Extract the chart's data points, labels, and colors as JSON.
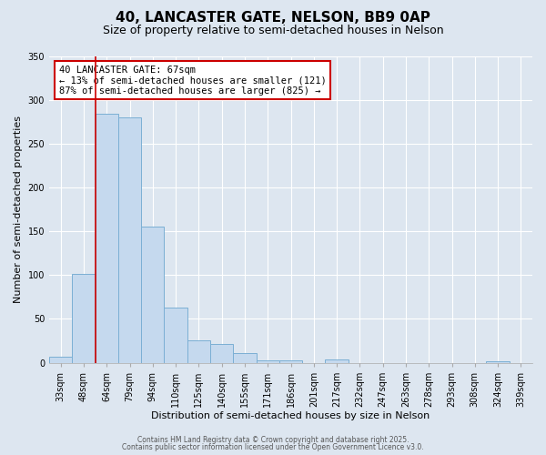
{
  "title": "40, LANCASTER GATE, NELSON, BB9 0AP",
  "subtitle": "Size of property relative to semi-detached houses in Nelson",
  "xlabel": "Distribution of semi-detached houses by size in Nelson",
  "ylabel": "Number of semi-detached properties",
  "bin_labels": [
    "33sqm",
    "48sqm",
    "64sqm",
    "79sqm",
    "94sqm",
    "110sqm",
    "125sqm",
    "140sqm",
    "155sqm",
    "171sqm",
    "186sqm",
    "201sqm",
    "217sqm",
    "232sqm",
    "247sqm",
    "263sqm",
    "278sqm",
    "293sqm",
    "308sqm",
    "324sqm",
    "339sqm"
  ],
  "bar_heights": [
    7,
    101,
    284,
    280,
    155,
    63,
    26,
    21,
    11,
    3,
    3,
    0,
    4,
    0,
    0,
    0,
    0,
    0,
    0,
    2,
    0
  ],
  "bar_color": "#c5d9ee",
  "bar_edge_color": "#7bafd4",
  "background_color": "#dde6f0",
  "grid_color": "#ffffff",
  "vline_color": "#cc0000",
  "annotation_title": "40 LANCASTER GATE: 67sqm",
  "annotation_line1": "← 13% of semi-detached houses are smaller (121)",
  "annotation_line2": "87% of semi-detached houses are larger (825) →",
  "annotation_box_facecolor": "#ffffff",
  "annotation_box_edgecolor": "#cc0000",
  "footer1": "Contains HM Land Registry data © Crown copyright and database right 2025.",
  "footer2": "Contains public sector information licensed under the Open Government Licence v3.0.",
  "ylim": [
    0,
    350
  ],
  "yticks": [
    0,
    50,
    100,
    150,
    200,
    250,
    300,
    350
  ],
  "title_fontsize": 11,
  "subtitle_fontsize": 9,
  "tick_fontsize": 7,
  "ylabel_fontsize": 8,
  "xlabel_fontsize": 8
}
